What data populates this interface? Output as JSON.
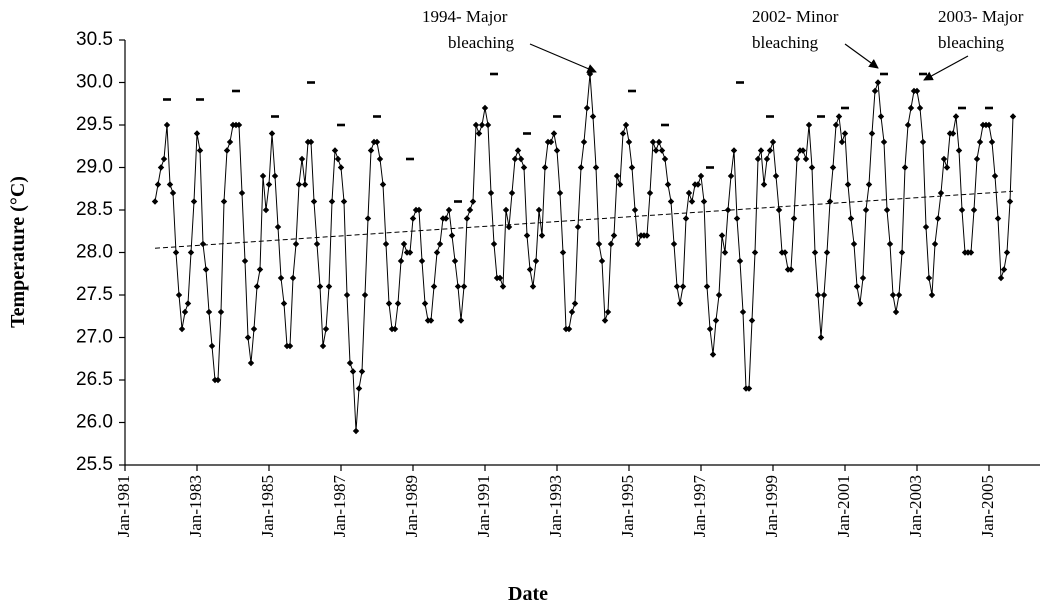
{
  "chart_data": {
    "type": "line",
    "y_label": "Temperature (°C)",
    "x_label": "Date",
    "xlim": [
      "1981-01",
      "2006-06"
    ],
    "xticks": [
      {
        "value": "1981-01",
        "label": "Jan-1981"
      },
      {
        "value": "1983-01",
        "label": "Jan-1983"
      },
      {
        "value": "1985-01",
        "label": "Jan-1985"
      },
      {
        "value": "1987-01",
        "label": "Jan-1987"
      },
      {
        "value": "1989-01",
        "label": "Jan-1989"
      },
      {
        "value": "1991-01",
        "label": "Jan-1991"
      },
      {
        "value": "1993-01",
        "label": "Jan-1993"
      },
      {
        "value": "1995-01",
        "label": "Jan-1995"
      },
      {
        "value": "1997-01",
        "label": "Jan-1997"
      },
      {
        "value": "1999-01",
        "label": "Jan-1999"
      },
      {
        "value": "2001-01",
        "label": "Jan-2001"
      },
      {
        "value": "2003-01",
        "label": "Jan-2003"
      },
      {
        "value": "2005-01",
        "label": "Jan-2005"
      }
    ],
    "ylim": [
      25.5,
      30.5
    ],
    "yticks": [
      25.5,
      {
        "value": 26,
        "label": "26.0"
      },
      26.5,
      {
        "value": 27,
        "label": "27.0"
      },
      27.5,
      {
        "value": 28,
        "label": "28.0"
      },
      28.5,
      {
        "value": 29,
        "label": "29.0"
      },
      29.5,
      {
        "value": 30,
        "label": "30.0"
      },
      30.5
    ],
    "series": [
      {
        "color": "#000000",
        "marker": "diamond",
        "style": "solid",
        "x": [
          "1981-11",
          "1981-12",
          "1982-01",
          "1982-02",
          "1982-03",
          "1982-04",
          "1982-05",
          "1982-06",
          "1982-07",
          "1982-08",
          "1982-09",
          "1982-10",
          "1982-11",
          "1982-12",
          "1983-01",
          "1983-02",
          "1983-03",
          "1983-04",
          "1983-05",
          "1983-06",
          "1983-07",
          "1983-08",
          "1983-09",
          "1983-10",
          "1983-11",
          "1983-12",
          "1984-01",
          "1984-02",
          "1984-03",
          "1984-04",
          "1984-05",
          "1984-06",
          "1984-07",
          "1984-08",
          "1984-09",
          "1984-10",
          "1984-11",
          "1984-12",
          "1985-01",
          "1985-02",
          "1985-03",
          "1985-04",
          "1985-05",
          "1985-06",
          "1985-07",
          "1985-08",
          "1985-09",
          "1985-10",
          "1985-11",
          "1985-12",
          "1986-01",
          "1986-02",
          "1986-03",
          "1986-04",
          "1986-05",
          "1986-06",
          "1986-07",
          "1986-08",
          "1986-09",
          "1986-10",
          "1986-11",
          "1986-12",
          "1987-01",
          "1987-02",
          "1987-03",
          "1987-04",
          "1987-05",
          "1987-06",
          "1987-07",
          "1987-08",
          "1987-09",
          "1987-10",
          "1987-11",
          "1987-12",
          "1988-01",
          "1988-02",
          "1988-03",
          "1988-04",
          "1988-05",
          "1988-06",
          "1988-07",
          "1988-08",
          "1988-09",
          "1988-10",
          "1988-11",
          "1988-12",
          "1989-01",
          "1989-02",
          "1989-03",
          "1989-04",
          "1989-05",
          "1989-06",
          "1989-07",
          "1989-08",
          "1989-09",
          "1989-10",
          "1989-11",
          "1989-12",
          "1990-01",
          "1990-02",
          "1990-03",
          "1990-04",
          "1990-05",
          "1990-06",
          "1990-07",
          "1990-08",
          "1990-09",
          "1990-10",
          "1990-11",
          "1990-12",
          "1991-01",
          "1991-02",
          "1991-03",
          "1991-04",
          "1991-05",
          "1991-06",
          "1991-07",
          "1991-08",
          "1991-09",
          "1991-10",
          "1991-11",
          "1991-12",
          "1992-01",
          "1992-02",
          "1992-03",
          "1992-04",
          "1992-05",
          "1992-06",
          "1992-07",
          "1992-08",
          "1992-09",
          "1992-10",
          "1992-11",
          "1992-12",
          "1993-01",
          "1993-02",
          "1993-03",
          "1993-04",
          "1993-05",
          "1993-06",
          "1993-07",
          "1993-08",
          "1993-09",
          "1993-10",
          "1993-11",
          "1993-12",
          "1994-01",
          "1994-02",
          "1994-03",
          "1994-04",
          "1994-05",
          "1994-06",
          "1994-07",
          "1994-08",
          "1994-09",
          "1994-10",
          "1994-11",
          "1994-12",
          "1995-01",
          "1995-02",
          "1995-03",
          "1995-04",
          "1995-05",
          "1995-06",
          "1995-07",
          "1995-08",
          "1995-09",
          "1995-10",
          "1995-11",
          "1995-12",
          "1996-01",
          "1996-02",
          "1996-03",
          "1996-04",
          "1996-05",
          "1996-06",
          "1996-07",
          "1996-08",
          "1996-09",
          "1996-10",
          "1996-11",
          "1996-12",
          "1997-01",
          "1997-02",
          "1997-03",
          "1997-04",
          "1997-05",
          "1997-06",
          "1997-07",
          "1997-08",
          "1997-09",
          "1997-10",
          "1997-11",
          "1997-12",
          "1998-01",
          "1998-02",
          "1998-03",
          "1998-04",
          "1998-05",
          "1998-06",
          "1998-07",
          "1998-08",
          "1998-09",
          "1998-10",
          "1998-11",
          "1998-12",
          "1999-01",
          "1999-02",
          "1999-03",
          "1999-04",
          "1999-05",
          "1999-06",
          "1999-07",
          "1999-08",
          "1999-09",
          "1999-10",
          "1999-11",
          "1999-12",
          "2000-01",
          "2000-02",
          "2000-03",
          "2000-04",
          "2000-05",
          "2000-06",
          "2000-07",
          "2000-08",
          "2000-09",
          "2000-10",
          "2000-11",
          "2000-12",
          "2001-01",
          "2001-02",
          "2001-03",
          "2001-04",
          "2001-05",
          "2001-06",
          "2001-07",
          "2001-08",
          "2001-09",
          "2001-10",
          "2001-11",
          "2001-12",
          "2002-01",
          "2002-02",
          "2002-03",
          "2002-04",
          "2002-05",
          "2002-06",
          "2002-07",
          "2002-08",
          "2002-09",
          "2002-10",
          "2002-11",
          "2002-12",
          "2003-01",
          "2003-02",
          "2003-03",
          "2003-04",
          "2003-05",
          "2003-06",
          "2003-07",
          "2003-08",
          "2003-09",
          "2003-10",
          "2003-11",
          "2003-12",
          "2004-01",
          "2004-02",
          "2004-03",
          "2004-04",
          "2004-05",
          "2004-06",
          "2004-07",
          "2004-08",
          "2004-09",
          "2004-10",
          "2004-11",
          "2004-12",
          "2005-01",
          "2005-02",
          "2005-03",
          "2005-04",
          "2005-05",
          "2005-06",
          "2005-07",
          "2005-08",
          "2005-09"
        ],
        "values": [
          28.6,
          28.8,
          29.0,
          29.1,
          29.5,
          28.8,
          28.7,
          28.0,
          27.5,
          27.1,
          27.3,
          27.4,
          28.0,
          28.6,
          29.4,
          29.2,
          28.1,
          27.8,
          27.3,
          26.9,
          26.5,
          26.5,
          27.3,
          28.6,
          29.2,
          29.3,
          29.5,
          29.5,
          29.5,
          28.7,
          27.9,
          27.0,
          26.7,
          27.1,
          27.6,
          27.8,
          28.9,
          28.5,
          28.8,
          29.4,
          28.9,
          28.3,
          27.7,
          27.4,
          26.9,
          26.9,
          27.7,
          28.1,
          28.8,
          29.1,
          28.8,
          29.3,
          29.3,
          28.6,
          28.1,
          27.6,
          26.9,
          27.1,
          27.6,
          28.6,
          29.2,
          29.1,
          29.0,
          28.6,
          27.5,
          26.7,
          26.6,
          25.9,
          26.4,
          26.6,
          27.5,
          28.4,
          29.2,
          29.3,
          29.3,
          29.1,
          28.8,
          28.1,
          27.4,
          27.1,
          27.1,
          27.4,
          27.9,
          28.1,
          28.0,
          28.0,
          28.4,
          28.5,
          28.5,
          27.9,
          27.4,
          27.2,
          27.2,
          27.6,
          28.0,
          28.1,
          28.4,
          28.4,
          28.5,
          28.2,
          27.9,
          27.6,
          27.2,
          27.6,
          28.4,
          28.5,
          28.6,
          29.5,
          29.4,
          29.5,
          29.7,
          29.5,
          28.7,
          28.1,
          27.7,
          27.7,
          27.6,
          28.5,
          28.3,
          28.7,
          29.1,
          29.2,
          29.1,
          29.0,
          28.2,
          27.8,
          27.6,
          27.9,
          28.5,
          28.2,
          29.0,
          29.3,
          29.3,
          29.4,
          29.2,
          28.7,
          28.0,
          27.1,
          27.1,
          27.3,
          27.4,
          28.3,
          29.0,
          29.3,
          29.7,
          30.1,
          29.6,
          29.0,
          28.1,
          27.9,
          27.2,
          27.3,
          28.1,
          28.2,
          28.9,
          28.8,
          29.4,
          29.5,
          29.3,
          29.0,
          28.5,
          28.1,
          28.2,
          28.2,
          28.2,
          28.7,
          29.3,
          29.2,
          29.3,
          29.2,
          29.1,
          28.8,
          28.6,
          28.1,
          27.6,
          27.4,
          27.6,
          28.4,
          28.7,
          28.6,
          28.8,
          28.8,
          28.9,
          28.6,
          27.6,
          27.1,
          26.8,
          27.2,
          27.5,
          28.2,
          28.0,
          28.5,
          28.9,
          29.2,
          28.4,
          27.9,
          27.3,
          26.4,
          26.4,
          27.2,
          28.0,
          29.1,
          29.2,
          28.8,
          29.1,
          29.2,
          29.3,
          28.9,
          28.5,
          28.0,
          28.0,
          27.8,
          27.8,
          28.4,
          29.1,
          29.2,
          29.2,
          29.1,
          29.5,
          29.0,
          28.0,
          27.5,
          27.0,
          27.5,
          28.0,
          28.6,
          29.0,
          29.5,
          29.6,
          29.3,
          29.4,
          28.8,
          28.4,
          28.1,
          27.6,
          27.4,
          27.7,
          28.5,
          28.8,
          29.4,
          29.9,
          30.0,
          29.6,
          29.3,
          28.5,
          28.1,
          27.5,
          27.3,
          27.5,
          28.0,
          29.0,
          29.5,
          29.7,
          29.9,
          29.9,
          29.7,
          29.3,
          28.3,
          27.7,
          27.5,
          28.1,
          28.4,
          28.7,
          29.1,
          29.0,
          29.4,
          29.4,
          29.6,
          29.2,
          28.5,
          28.0,
          28.0,
          28.0,
          28.5,
          29.1,
          29.3,
          29.5,
          29.5,
          29.5,
          29.3,
          28.9,
          28.4,
          27.7,
          27.8,
          28.0,
          28.6,
          29.6
        ]
      },
      {
        "color": "#000000",
        "marker": "dash",
        "style": "none",
        "x": [
          "1982-03",
          "1983-02",
          "1984-02",
          "1985-03",
          "1986-03",
          "1987-01",
          "1988-01",
          "1988-12",
          "1990-04",
          "1991-04",
          "1992-03",
          "1993-01",
          "1995-02",
          "1996-01",
          "1997-04",
          "1998-02",
          "1998-12",
          "2000-05",
          "2001-01",
          "2002-02",
          "2003-03",
          "2004-04",
          "2005-01"
        ],
        "values": [
          29.8,
          29.8,
          29.9,
          29.6,
          30.0,
          29.5,
          29.6,
          29.1,
          28.6,
          30.1,
          29.4,
          29.6,
          29.9,
          29.5,
          29.0,
          30.0,
          29.6,
          29.6,
          29.7,
          30.1,
          30.1,
          29.7,
          29.7
        ]
      },
      {
        "color": "#000000",
        "marker": "none",
        "style": "dashed",
        "x": [
          "1981-11",
          "2005-09"
        ],
        "values": [
          28.05,
          28.72
        ]
      }
    ],
    "annotations": [
      {
        "lines": [
          "1994- Major",
          "bleaching"
        ]
      },
      {
        "lines": [
          "2002- Minor",
          "bleaching"
        ]
      },
      {
        "lines": [
          "2003- Major",
          "bleaching"
        ]
      }
    ]
  }
}
